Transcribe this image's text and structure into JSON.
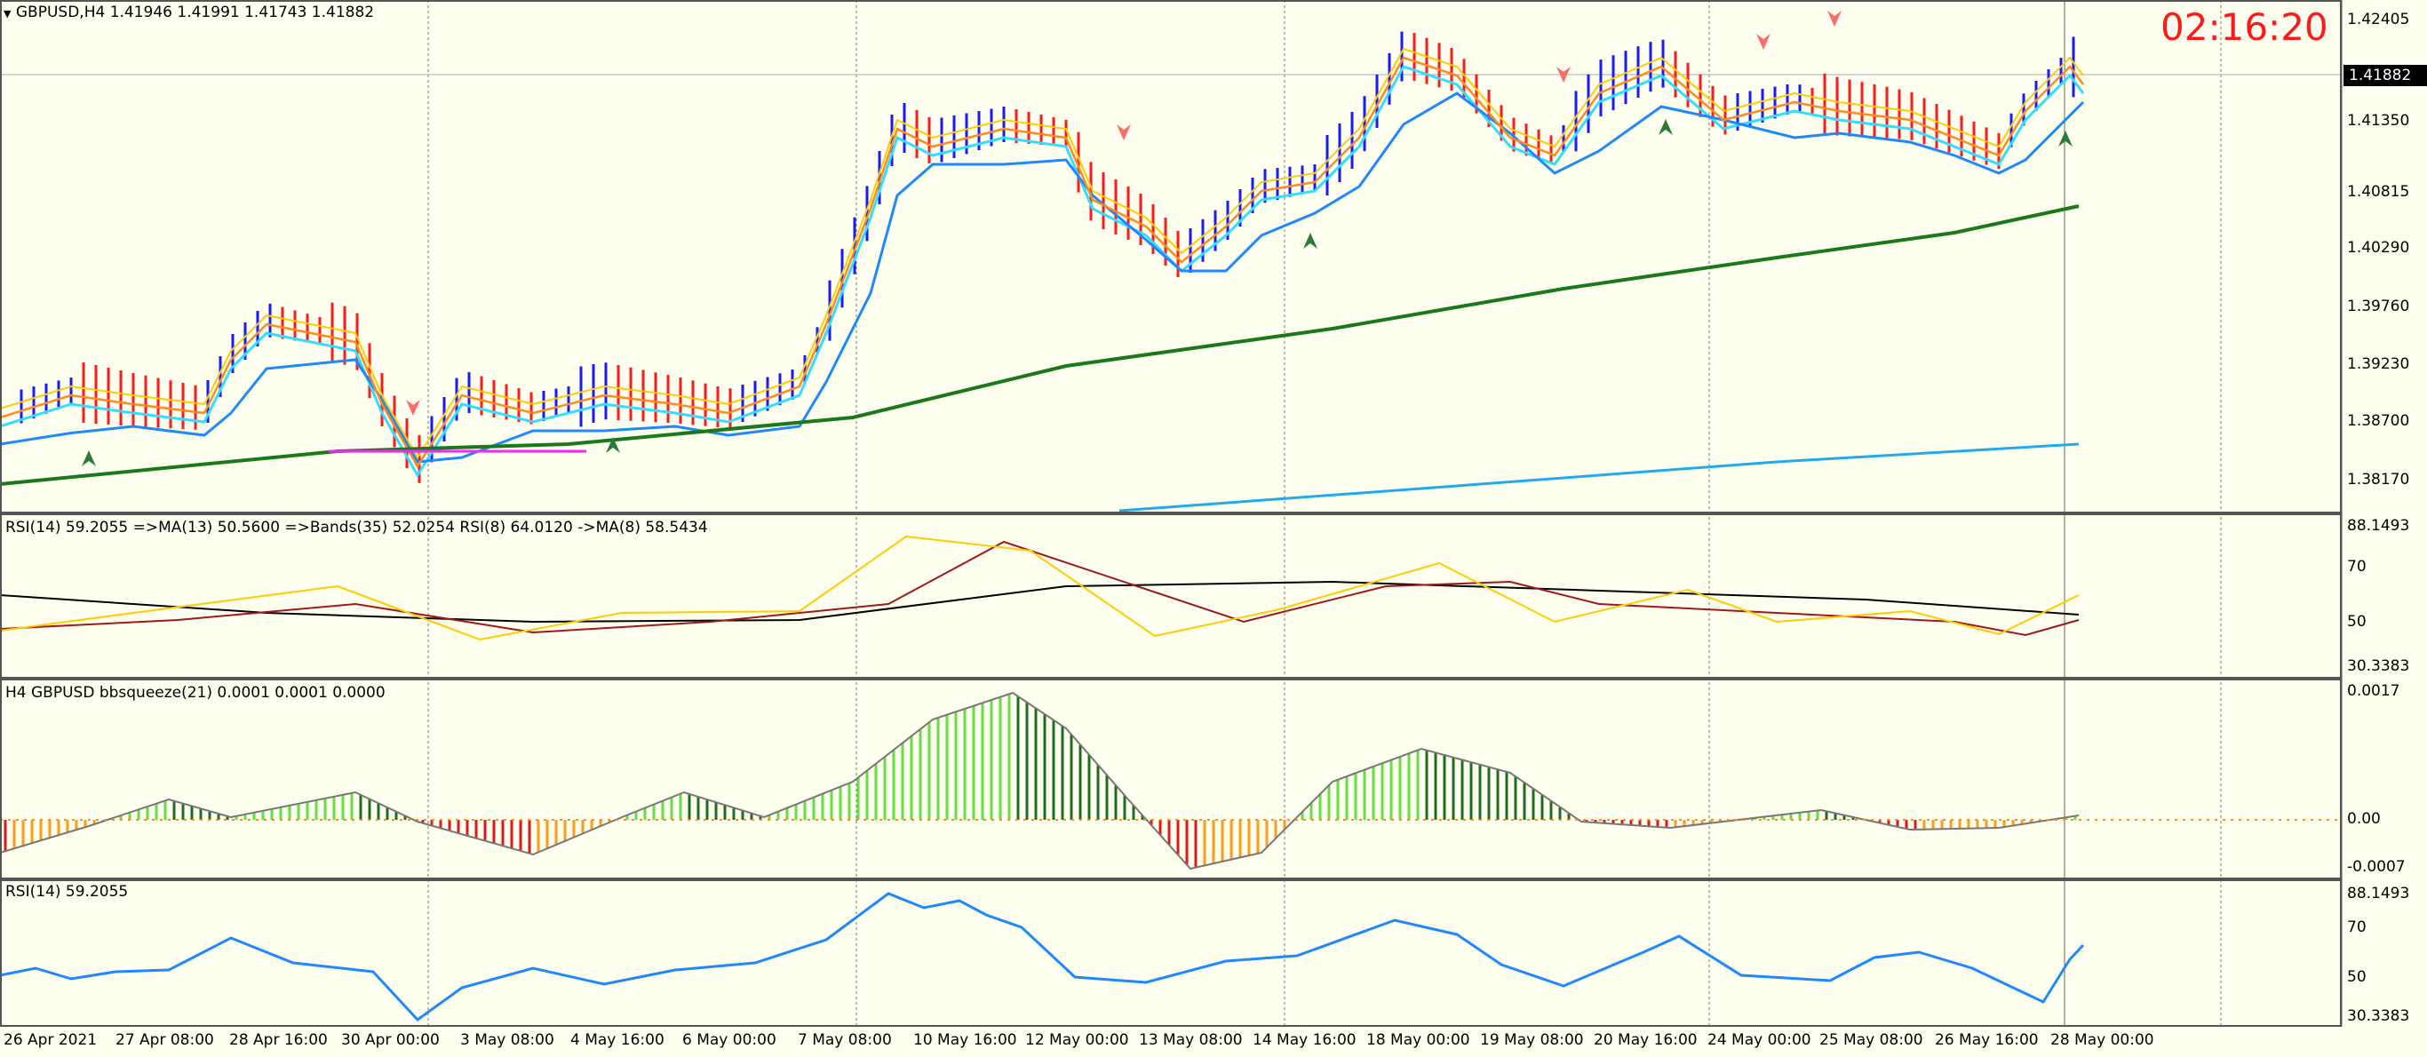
{
  "header": {
    "symbol_line": "GBPUSD,H4  1.41946 1.41991 1.41743 1.41882",
    "timer": "02:16:20"
  },
  "main_panel": {
    "y_labels": [
      "1.42405",
      "1.41882",
      "1.41350",
      "1.40815",
      "1.40290",
      "1.39760",
      "1.39230",
      "1.38700",
      "1.38170"
    ],
    "current_price": "1.41882"
  },
  "rsi_bands_panel": {
    "title": "RSI(14) 59.2055  =>MA(13) 50.5600  =>Bands(35) 52.0254  RSI(8) 64.0120  ->MA(8) 58.5434",
    "y_labels": [
      "88.1493",
      "70",
      "50",
      "30.3383"
    ]
  },
  "squeeze_panel": {
    "title": "H4 GBPUSD bbsqueeze(21) 0.0001 0.0001 0.0000",
    "y_labels": [
      "0.0017",
      "0.00",
      "-0.0007"
    ]
  },
  "rsi_panel": {
    "title": "RSI(14) 59.2055",
    "y_labels": [
      "88.1493",
      "70",
      "50",
      "30.3383"
    ]
  },
  "x_axis": {
    "labels": [
      "26 Apr 2021",
      "27 Apr 08:00",
      "28 Apr 16:00",
      "30 Apr 00:00",
      "3 May 08:00",
      "4 May 16:00",
      "6 May 00:00",
      "7 May 08:00",
      "10 May 16:00",
      "12 May 00:00",
      "13 May 08:00",
      "14 May 16:00",
      "18 May 00:00",
      "19 May 08:00",
      "20 May 16:00",
      "24 May 00:00",
      "25 May 08:00",
      "26 May 16:00",
      "28 May 00:00"
    ]
  },
  "colors": {
    "background": "#fffff0",
    "bull_bar": "#1a1aff",
    "bear_bar": "#ff1a1a",
    "ma_fast": "#33ddff",
    "ma_mid": "#1e88ff",
    "ma_orange": "#ff8c1a",
    "ma_yellow": "#ffcc00",
    "ma_green": "#1a7a1a",
    "ma_light_blue": "#22aaee",
    "timer": "#ff1a1a"
  }
}
